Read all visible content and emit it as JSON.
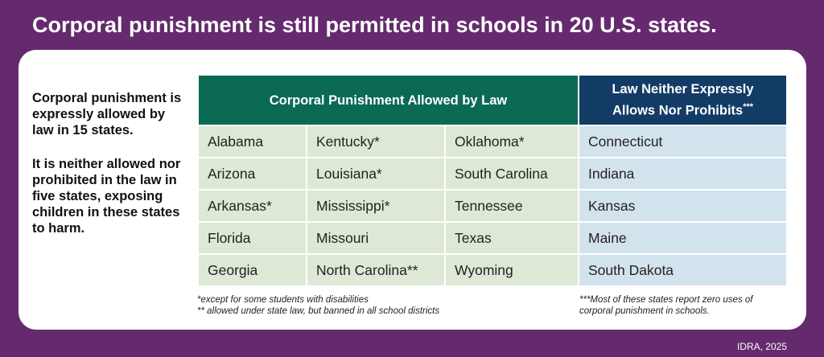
{
  "title": "Corporal punishment is still permitted in schools in 20 U.S. states.",
  "side": {
    "p1": "Corporal punishment is expressly allowed by law in 15 states.",
    "p2": "It is neither allowed nor prohibited in the law in five states, exposing children in these states to harm."
  },
  "table": {
    "header_allowed": "Corporal Punishment Allowed by Law",
    "header_neither": "Law Neither Expressly Allows Nor Prohibits",
    "header_neither_mark": "***",
    "rows": [
      [
        "Alabama",
        "Kentucky*",
        "Oklahoma*",
        "Connecticut"
      ],
      [
        "Arizona",
        "Louisiana*",
        "South Carolina",
        "Indiana"
      ],
      [
        "Arkansas*",
        "Mississippi*",
        "Tennessee",
        "Kansas"
      ],
      [
        "Florida",
        "Missouri",
        "Texas",
        "Maine"
      ],
      [
        "Georgia",
        "North Carolina**",
        "Wyoming",
        "South Dakota"
      ]
    ]
  },
  "notes": {
    "left_1": "*except for some students with disabilities",
    "left_2": "** allowed under state law, but banned in all school districts",
    "right": "***Most of these states report zero uses of corporal punishment in schools."
  },
  "credit": "IDRA, 2025",
  "colors": {
    "background": "#652a6e",
    "green_header": "#0b6a53",
    "blue_header": "#123c66",
    "green_cell": "#dde9d6",
    "blue_cell": "#d3e3ee"
  }
}
